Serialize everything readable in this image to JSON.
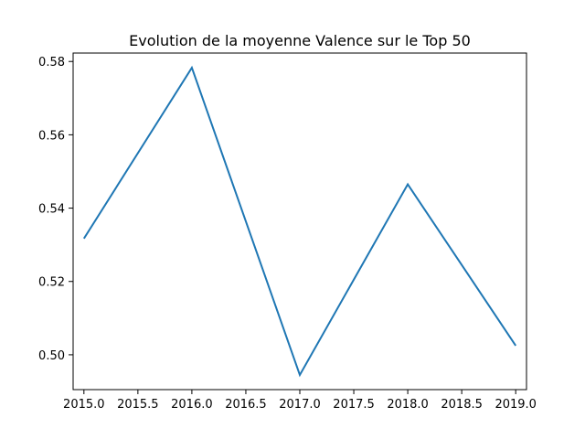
{
  "chart_data": {
    "type": "line",
    "title": "Evolution de la moyenne Valence sur le Top 50",
    "xlabel": "",
    "ylabel": "",
    "x": [
      2015,
      2016,
      2017,
      2018,
      2019
    ],
    "series": [
      {
        "values": [
          0.5317,
          0.5783,
          0.4945,
          0.5465,
          0.5025
        ],
        "color": "#1f77b4"
      }
    ],
    "xlim": [
      2014.9,
      2019.1
    ],
    "ylim": [
      0.4905,
      0.5823
    ],
    "xticks": [
      2015.0,
      2015.5,
      2016.0,
      2016.5,
      2017.0,
      2017.5,
      2018.0,
      2018.5,
      2019.0
    ],
    "xtick_labels": [
      "2015.0",
      "2015.5",
      "2016.0",
      "2016.5",
      "2017.0",
      "2017.5",
      "2018.0",
      "2018.5",
      "2019.0"
    ],
    "yticks": [
      0.5,
      0.52,
      0.54,
      0.56,
      0.58
    ],
    "ytick_labels": [
      "0.50",
      "0.52",
      "0.54",
      "0.56",
      "0.58"
    ],
    "grid": false,
    "legend": "none"
  }
}
